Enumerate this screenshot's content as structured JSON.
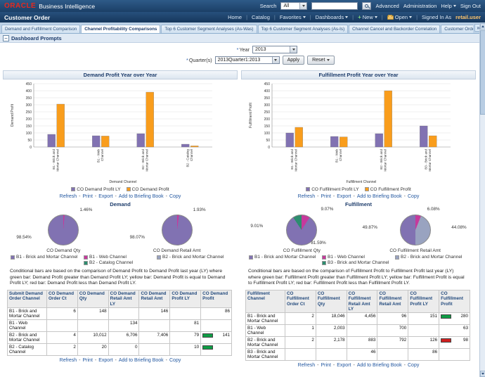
{
  "header": {
    "logo": "ORACLE",
    "product": "Business Intelligence",
    "search": {
      "label": "Search",
      "scope": "All"
    },
    "links": {
      "advanced": "Advanced",
      "administration": "Administration",
      "help": "Help",
      "sign_out": "Sign Out"
    }
  },
  "appbar": {
    "title": "Customer Order",
    "home": "Home",
    "catalog": "Catalog",
    "favorites": "Favorites",
    "dashboards": "Dashboards",
    "new": "New",
    "open": "Open",
    "signed_in": "Signed In As",
    "user": "retail.user"
  },
  "tabs": [
    {
      "label": "Demand and Fulfillment Comparison",
      "selected": false
    },
    {
      "label": "Channel Profitability Comparisons",
      "selected": true
    },
    {
      "label": "Top 6 Customer Segment Analyses (As-Was)",
      "selected": false
    },
    {
      "label": "Top 6 Customer Segment Analyses (As-Is)",
      "selected": false
    },
    {
      "label": "Channel Cancel and Backorder Correlation",
      "selected": false
    },
    {
      "label": "Customer Orde »",
      "selected": false
    }
  ],
  "prompts": {
    "section": "Dashboard Prompts",
    "required_marker": "*",
    "year_label": "Year",
    "year_value": "2013",
    "quarter_label": "Quarter(s)",
    "quarter_value": "2013Quarter1:2013",
    "apply": "Apply",
    "reset": "Reset"
  },
  "links_row": [
    "Refresh",
    "Print",
    "Export",
    "Add to Briefing Book",
    "Copy"
  ],
  "left": {
    "pie_section": "Demand",
    "conditional_text": "Conditional bars are based on the comparison of Demand Profit to Demand Profit last year (LY) where green bar: Demand Profit greater than Demand Profit LY; yellow bar: Demand Profit is equal to Demand Profit LY; red bar: Demand Profit less than Demand Profit LY."
  },
  "right": {
    "pie_section": "Fulfillment",
    "conditional_text": "Conditional bars are based on the comparison of Fulfillment Profit to Fulfillment Profit last year (LY) where green bar: Fulfillment Profit greater than Fulfillment Profit LY; yellow bar: Fulfillment Profit is equal to Fulfillment Profit LY; red bar: Fulfillment Profit less than Fulfillment Profit LY."
  },
  "legends": {
    "demand_pie": [
      {
        "color": "#8172b2",
        "label": "B1 - Brick and Mortar Channel"
      },
      {
        "color": "#c6399c",
        "label": "B1 - Web Channel"
      },
      {
        "color": "#99a3c0",
        "label": "B2 - Brick and Mortar Channel"
      },
      {
        "color": "#2d8d6f",
        "label": "B2 - Catalog Channel"
      }
    ],
    "fulfillment_pie": [
      {
        "color": "#8172b2",
        "label": "B1 - Brick and Mortar Channel"
      },
      {
        "color": "#c6399c",
        "label": "B1 - Web Channel"
      },
      {
        "color": "#99a3c0",
        "label": "B2 - Brick and Mortar Channel"
      },
      {
        "color": "#2d8d6f",
        "label": "B3 - Brick and Mortar Channel"
      }
    ]
  },
  "chart_data": [
    {
      "type": "bar",
      "title": "Demand Profit Year over Year",
      "categories": [
        "B1 - Brick and Mortar Channel",
        "B1 - Web Channel",
        "B2 - Brick and Mortar Channel",
        "B2 - Catalog Channel"
      ],
      "series": [
        {
          "name": "CO Demand Profit LY",
          "color": "#8172b2",
          "values": [
            90,
            80,
            95,
            20
          ]
        },
        {
          "name": "CO Demand Profit",
          "color": "#f99d1c",
          "values": [
            305,
            78,
            390,
            8
          ]
        }
      ],
      "xlabel": "Demand Channel",
      "ylabel": "Demand Profit",
      "ylim": [
        0,
        450
      ],
      "ytick_step": 50,
      "grid": true,
      "legend_position": "bottom"
    },
    {
      "type": "bar",
      "title": "Fulfillment Profit Year over Year",
      "categories": [
        "B1 - Brick and Mortar Channel",
        "B1 - Web Channel",
        "B2 - Brick and Mortar Channel",
        "B3 - Brick and Mortar Channel"
      ],
      "series": [
        {
          "name": "CO Fulfillment Profit LY",
          "color": "#8172b2",
          "values": [
            100,
            75,
            95,
            150
          ]
        },
        {
          "name": "CO Fulfillment Profit",
          "color": "#f99d1c",
          "values": [
            140,
            72,
            400,
            80
          ]
        }
      ],
      "xlabel": "Fulfillment Channel",
      "ylabel": "Fulfillment Profit",
      "ylim": [
        0,
        450
      ],
      "ytick_step": 50,
      "grid": true,
      "legend_position": "bottom"
    },
    {
      "type": "pie",
      "title": "CO Demand Qty",
      "slices": [
        {
          "label": "B1 - Web Channel",
          "pct": 1.46,
          "text": "1.46%",
          "color": "#c6399c"
        },
        {
          "label": "B1 - Brick and Mortar Channel",
          "pct": 98.54,
          "text": "98.54%",
          "color": "#8172b2"
        }
      ]
    },
    {
      "type": "pie",
      "title": "CO Demand Retail Amt",
      "slices": [
        {
          "label": "B1 - Web Channel",
          "pct": 1.93,
          "text": "1.93%",
          "color": "#c6399c"
        },
        {
          "label": "B1 - Brick and Mortar Channel",
          "pct": 98.07,
          "text": "98.07%",
          "color": "#8172b2"
        }
      ]
    },
    {
      "type": "pie",
      "title": "CO Fulfillment Qty",
      "slices": [
        {
          "label": "B1 - Web Channel",
          "pct": 9.07,
          "text": "9.07%",
          "color": "#c6399c"
        },
        {
          "label": "B1 - Brick and Mortar Channel",
          "pct": 81.59,
          "text": "81.59%",
          "color": "#8172b2"
        },
        {
          "label": "B3 - Brick and Mortar Channel",
          "pct": 9.01,
          "text": "9.01%",
          "color": "#2d8d6f"
        }
      ]
    },
    {
      "type": "pie",
      "title": "CO Fulfillment Retail Amt",
      "slices": [
        {
          "label": "B1 - Web Channel",
          "pct": 6.08,
          "text": "6.08%",
          "color": "#c6399c"
        },
        {
          "label": "B2 - Brick and Mortar Channel",
          "pct": 44.08,
          "text": "44.08%",
          "color": "#99a3c0"
        },
        {
          "label": "B1 - Brick and Mortar Channel",
          "pct": 49.87,
          "text": "49.87%",
          "color": "#8172b2"
        }
      ]
    }
  ],
  "tables": {
    "demand": {
      "headers": [
        "Submit Demand Order Channel",
        "CO Demand Order Ct",
        "CO Demand Qty",
        "CO Demand Retail Amt LY",
        "CO Demand Retail Amt",
        "CO Demand Profit LY",
        "CO Demand Profit"
      ],
      "rows": [
        {
          "cells": [
            "B1 - Brick and Mortar Channel",
            "6",
            "148",
            "",
            "146",
            "",
            "86"
          ],
          "bar_col": null,
          "bar_color": null
        },
        {
          "cells": [
            "B1 - Web Channel",
            "",
            "",
            "134",
            "",
            "81",
            ""
          ],
          "bar_col": null,
          "bar_color": null
        },
        {
          "cells": [
            "B2 - Brick and Mortar Channel",
            "4",
            "10,012",
            "6,706",
            "7,406",
            "79",
            "141"
          ],
          "bar_col": 6,
          "bar_color": "green"
        },
        {
          "cells": [
            "B2 - Catalog Channel",
            "2",
            "20",
            "0",
            "",
            "10",
            ""
          ],
          "bar_col": 6,
          "bar_color": "green"
        }
      ]
    },
    "fulfillment": {
      "headers": [
        "Fulfillment Channel",
        "CO Fulfillment Order Ct",
        "CO Fulfillment Qty",
        "CO Fulfillment Retail Amt LY",
        "CO Fulfillment Retail Amt",
        "CO Fulfillment Profit LY",
        "CO Fulfillment Profit"
      ],
      "rows": [
        {
          "cells": [
            "B1 - Brick and Mortar Channel",
            "2",
            "18,046",
            "4,456",
            "96",
            "151",
            "280"
          ],
          "bar_col": 6,
          "bar_color": "green"
        },
        {
          "cells": [
            "B1 - Web Channel",
            "1",
            "2,003",
            "",
            "700",
            "",
            "63"
          ],
          "bar_col": null,
          "bar_color": null
        },
        {
          "cells": [
            "B2 - Brick and Mortar Channel",
            "2",
            "2,178",
            "883",
            "792",
            "126",
            "98"
          ],
          "bar_col": 6,
          "bar_color": "red"
        },
        {
          "cells": [
            "B3 - Brick and Mortar Channel",
            "",
            "",
            "46",
            "",
            "86",
            ""
          ],
          "bar_col": null,
          "bar_color": null
        }
      ]
    }
  },
  "colors": {
    "purple": "#8172b2",
    "orange": "#f99d1c",
    "magenta": "#c6399c",
    "teal": "#2d8d6f",
    "gray_blue": "#99a3c0",
    "green_bar": "#0f9d45",
    "red_bar": "#d02020",
    "link": "#2257a0"
  }
}
